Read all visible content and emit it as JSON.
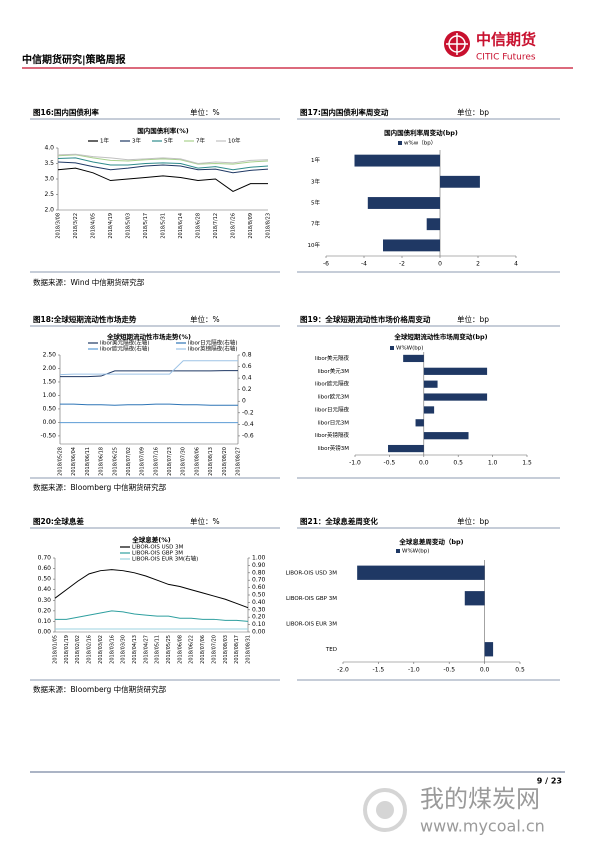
{
  "header": {
    "title": "中信期货研究|策略周报",
    "brand": "中信期货",
    "brand_en": "CITIC Futures"
  },
  "sources": [
    "数据来源：Wind  中信期货研究部",
    "数据来源：Bloomberg  中信期货研究部",
    "数据来源：Bloomberg  中信期货研究部"
  ],
  "footer": {
    "page": "9 / 23"
  },
  "watermark": {
    "name": "我的煤炭网",
    "url": "www.mycoal.cn"
  },
  "chart_data": [
    {
      "type": "line",
      "caption": "图16:国内国债利率",
      "unit": "单位：%",
      "title": "国内国债利率(%)",
      "categories": [
        "2018/3/08",
        "2018/3/22",
        "2018/4/05",
        "2018/4/19",
        "2018/5/03",
        "2018/5/17",
        "2018/5/31",
        "2018/6/14",
        "2018/6/28",
        "2018/7/12",
        "2018/7/26",
        "2018/8/09",
        "2018/8/23"
      ],
      "series": [
        {
          "name": "1年",
          "color": "#000000",
          "values": [
            3.3,
            3.35,
            3.2,
            2.95,
            3.0,
            3.05,
            3.1,
            3.05,
            2.95,
            3.0,
            2.6,
            2.85,
            2.85
          ]
        },
        {
          "name": "3年",
          "color": "#1f3864",
          "values": [
            3.55,
            3.52,
            3.4,
            3.3,
            3.35,
            3.42,
            3.45,
            3.42,
            3.3,
            3.32,
            3.2,
            3.28,
            3.32
          ]
        },
        {
          "name": "5年",
          "color": "#2e8b8b",
          "values": [
            3.66,
            3.68,
            3.55,
            3.45,
            3.45,
            3.5,
            3.52,
            3.5,
            3.35,
            3.4,
            3.3,
            3.38,
            3.42
          ]
        },
        {
          "name": "7年",
          "color": "#a9d18e",
          "values": [
            3.75,
            3.78,
            3.68,
            3.6,
            3.58,
            3.62,
            3.65,
            3.62,
            3.48,
            3.5,
            3.48,
            3.55,
            3.58
          ]
        },
        {
          "name": "10年",
          "color": "#c0c0c0",
          "values": [
            3.78,
            3.8,
            3.72,
            3.68,
            3.62,
            3.65,
            3.68,
            3.65,
            3.5,
            3.55,
            3.52,
            3.6,
            3.62
          ]
        }
      ],
      "ylim": [
        2,
        4
      ],
      "yticks": [
        {
          "value": 2,
          "label": "2.0"
        },
        2.5,
        {
          "value": 3,
          "label": "3.0"
        },
        3.5,
        {
          "value": 4,
          "label": "4.0"
        }
      ]
    },
    {
      "type": "barh",
      "caption": "图17:国内国债利率周变动",
      "unit": "单位：bp",
      "title": "国内国债利率周变动(bp)",
      "categories": [
        "1年",
        "3年",
        "5年",
        "7年",
        "10年"
      ],
      "series": [
        {
          "name": "w%w（bp）",
          "color": "#1f3864",
          "values": [
            -4.5,
            2.1,
            -3.8,
            -0.7,
            -3.0
          ]
        }
      ],
      "xlim": [
        -6,
        4
      ],
      "xticks": [
        -6,
        -4,
        -2,
        0,
        2,
        4
      ]
    },
    {
      "type": "line",
      "caption": "图18:全球短期流动性市场走势",
      "unit": "单位：%",
      "title": "全球短期流动性市场走势(%)",
      "categories": [
        "2018/05/28",
        "2018/06/04",
        "2018/06/11",
        "2018/06/18",
        "2018/06/25",
        "2018/07/02",
        "2018/07/09",
        "2018/07/16",
        "2018/07/23",
        "2018/07/30",
        "2018/08/06",
        "2018/08/13",
        "2018/08/20",
        "2018/08/27"
      ],
      "series": [
        {
          "name": "libor美元隔夜(左轴)",
          "color": "#1f3864",
          "values": [
            1.7,
            1.7,
            1.7,
            1.72,
            1.91,
            1.91,
            1.91,
            1.91,
            1.91,
            1.91,
            1.91,
            1.91,
            1.92,
            1.92
          ]
        },
        {
          "name": "libor日元隔夜(右轴)",
          "color": "#2e75b6",
          "axis": "y2",
          "values": [
            -0.05,
            -0.05,
            -0.06,
            -0.06,
            -0.07,
            -0.06,
            -0.06,
            -0.05,
            -0.05,
            -0.06,
            -0.06,
            -0.07,
            -0.07,
            -0.07
          ]
        },
        {
          "name": "libor欧元隔夜(右轴)",
          "color": "#5b9bd5",
          "axis": "y2",
          "values": [
            -0.37,
            -0.37,
            -0.37,
            -0.37,
            -0.37,
            -0.37,
            -0.37,
            -0.37,
            -0.37,
            -0.37,
            -0.37,
            -0.37,
            -0.37,
            -0.37
          ]
        },
        {
          "name": "libor英镑隔夜(右轴)",
          "color": "#9dc3e6",
          "axis": "y2",
          "values": [
            0.46,
            0.47,
            0.47,
            0.47,
            0.47,
            0.47,
            0.47,
            0.47,
            0.47,
            0.7,
            0.7,
            0.7,
            0.7,
            0.7
          ]
        }
      ],
      "ylim": [
        -0.8,
        2.5
      ],
      "yticks": [
        {
          "value": -0.5,
          "label": "-0.50"
        },
        {
          "value": 0,
          "label": "0.00"
        },
        {
          "value": 0.5,
          "label": "0.50"
        },
        {
          "value": 1,
          "label": "1.00"
        },
        {
          "value": 1.5,
          "label": "1.50"
        },
        {
          "value": 2,
          "label": "2.00"
        },
        {
          "value": 2.5,
          "label": "2.50"
        }
      ],
      "y2lim": [
        -0.74,
        0.8
      ],
      "y2ticks": [
        -0.6,
        -0.4,
        -0.2,
        0,
        0.2,
        0.4,
        0.6,
        0.8
      ]
    },
    {
      "type": "barh",
      "caption": "图19：全球短期流动性市场价格周变动",
      "unit": "单位：bp",
      "title": "全球短期流动性市场周变动(bp)",
      "categories": [
        "libor美元隔夜",
        "libor美元3M",
        "libor欧元隔夜",
        "libor欧元3M",
        "libor日元隔夜",
        "libor日元3M",
        "libor英镑隔夜",
        "libor英镑3M"
      ],
      "series": [
        {
          "name": "W%W(bp)",
          "color": "#1f3864",
          "values": [
            -0.3,
            0.92,
            0.2,
            0.92,
            0.15,
            -0.12,
            0.65,
            -0.52
          ]
        }
      ],
      "xlim": [
        -1,
        1.5
      ],
      "xticks": [
        {
          "value": -1,
          "label": "-1.0"
        },
        -0.5,
        {
          "value": 0,
          "label": "0.0"
        },
        0.5,
        {
          "value": 1,
          "label": "1.0"
        },
        1.5
      ]
    },
    {
      "type": "line",
      "caption": "图20:全球息差",
      "unit": "单位：%",
      "title": "全球息差(%)",
      "categories": [
        "2018/01/05",
        "2018/01/19",
        "2018/02/02",
        "2018/02/16",
        "2018/03/02",
        "2018/03/16",
        "2018/03/30",
        "2018/04/13",
        "2018/04/27",
        "2018/05/11",
        "2018/05/25",
        "2018/06/08",
        "2018/06/22",
        "2018/07/06",
        "2018/07/20",
        "2018/08/03",
        "2018/08/17",
        "2018/08/31"
      ],
      "series": [
        {
          "name": "LIBOR-OIS USD 3M",
          "color": "#000000",
          "values": [
            0.32,
            0.4,
            0.48,
            0.55,
            0.58,
            0.59,
            0.58,
            0.56,
            0.53,
            0.49,
            0.45,
            0.43,
            0.4,
            0.37,
            0.34,
            0.31,
            0.27,
            0.23
          ]
        },
        {
          "name": "LIBOR-OIS GBP 3M",
          "color": "#2e9f9f",
          "values": [
            0.12,
            0.12,
            0.14,
            0.16,
            0.18,
            0.2,
            0.19,
            0.17,
            0.16,
            0.15,
            0.15,
            0.13,
            0.13,
            0.12,
            0.12,
            0.11,
            0.11,
            0.1
          ]
        },
        {
          "name": "LIBOR-OIS EUR 3M(右轴)",
          "color": "#9cd3e0",
          "axis": "y2",
          "values": [
            0.04,
            0.04,
            0.04,
            0.04,
            0.04,
            0.04,
            0.04,
            0.04,
            0.04,
            0.04,
            0.04,
            0.04,
            0.04,
            0.04,
            0.04,
            0.04,
            0.04,
            0.04
          ]
        }
      ],
      "ylim": [
        0,
        0.7
      ],
      "yticks": [
        {
          "value": 0,
          "label": "0.00"
        },
        {
          "value": 0.1,
          "label": "0.10"
        },
        {
          "value": 0.2,
          "label": "0.20"
        },
        {
          "value": 0.3,
          "label": "0.30"
        },
        {
          "value": 0.4,
          "label": "0.40"
        },
        {
          "value": 0.5,
          "label": "0.50"
        },
        {
          "value": 0.6,
          "label": "0.60"
        },
        {
          "value": 0.7,
          "label": "0.70"
        }
      ],
      "y2lim": [
        0,
        1
      ],
      "y2ticks": [
        {
          "value": 0,
          "label": "0.00"
        },
        {
          "value": 0.1,
          "label": "0.10"
        },
        {
          "value": 0.2,
          "label": "0.20"
        },
        {
          "value": 0.3,
          "label": "0.30"
        },
        {
          "value": 0.4,
          "label": "0.40"
        },
        {
          "value": 0.5,
          "label": "0.50"
        },
        {
          "value": 0.6,
          "label": "0.60"
        },
        {
          "value": 0.7,
          "label": "0.70"
        },
        {
          "value": 0.8,
          "label": "0.80"
        },
        {
          "value": 0.9,
          "label": "0.90"
        },
        {
          "value": 1,
          "label": "1.00"
        }
      ]
    },
    {
      "type": "barh",
      "caption": "图21：全球息差周变化",
      "unit": "单位：bp",
      "title": "全球息差周变动（bp)",
      "categories": [
        "LIBOR-OIS USD 3M",
        "LIBOR-OIS GBP 3M",
        "LIBOR-OIS EUR 3M",
        "TED"
      ],
      "series": [
        {
          "name": "W%W(bp)",
          "color": "#1f3864",
          "values": [
            -1.8,
            -0.28,
            0,
            0.12
          ]
        }
      ],
      "xlim": [
        -2,
        0.5
      ],
      "xticks": [
        {
          "value": -2,
          "label": "-2.0"
        },
        -1.5,
        {
          "value": -1,
          "label": "-1.0"
        },
        -0.5,
        {
          "value": 0,
          "label": "0.0"
        },
        0.5
      ]
    }
  ]
}
